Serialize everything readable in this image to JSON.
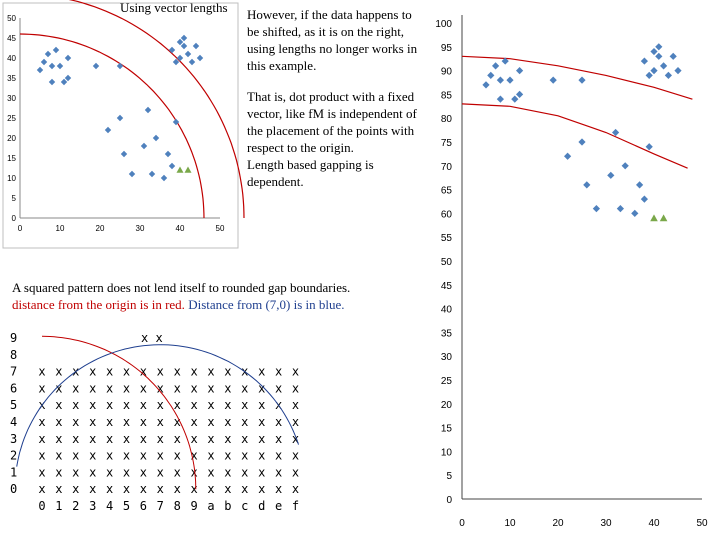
{
  "top_left_title": "Using vector lengths",
  "right_note": {
    "line1": "However, if the data happens to",
    "line2": "be shifted, as it is on the right,",
    "line3": "using lengths no longer works in",
    "line4": "this example.",
    "line5": "That is, dot product with a fixed",
    "line6": "vector, like fM is independent of",
    "line7": "the placement of the points with",
    "line8": "respect to the origin.",
    "line9": "Length based gapping is",
    "line10": "dependent."
  },
  "squared_note": {
    "line1": "A squared pattern does not lend itself to rounded gap boundaries.",
    "red_part": "distance from the origin is in red.",
    "blue_part": "Distance from (7,0) is in blue."
  },
  "colors": {
    "marker": "#4f81bd",
    "arc": "#c00000",
    "blue_arc": "#1f3f8f",
    "green": "#7aa84a"
  },
  "chart_data": [
    {
      "type": "scatter",
      "name": "left-chart",
      "title": "Using vector lengths",
      "xlim": [
        0,
        50
      ],
      "ylim": [
        0,
        50
      ],
      "x_ticks": [
        0,
        10,
        20,
        30,
        40,
        50
      ],
      "y_ticks": [
        0,
        5,
        10,
        15,
        20,
        25,
        30,
        35,
        40,
        45,
        50
      ],
      "points": [
        [
          5,
          37
        ],
        [
          6,
          39
        ],
        [
          7,
          41
        ],
        [
          8,
          38
        ],
        [
          8,
          34
        ],
        [
          9,
          42
        ],
        [
          10,
          38
        ],
        [
          11,
          34
        ],
        [
          12,
          40
        ],
        [
          12,
          35
        ],
        [
          19,
          38
        ],
        [
          22,
          22
        ],
        [
          25,
          38
        ],
        [
          25,
          25
        ],
        [
          26,
          16
        ],
        [
          28,
          11
        ],
        [
          31,
          18
        ],
        [
          32,
          27
        ],
        [
          33,
          11
        ],
        [
          34,
          20
        ],
        [
          36,
          10
        ],
        [
          37,
          16
        ],
        [
          38,
          42
        ],
        [
          38,
          13
        ],
        [
          39,
          39
        ],
        [
          39,
          24
        ],
        [
          40,
          44
        ],
        [
          40,
          40
        ],
        [
          41,
          45
        ],
        [
          41,
          43
        ],
        [
          42,
          41
        ],
        [
          43,
          39
        ],
        [
          44,
          43
        ],
        [
          45,
          40
        ]
      ],
      "green_points": [
        [
          40,
          12
        ],
        [
          42,
          12
        ]
      ],
      "arcs": [
        {
          "center": [
            0,
            0
          ],
          "radius": 46
        },
        {
          "center": [
            0,
            0
          ],
          "radius": 56
        }
      ]
    },
    {
      "type": "scatter",
      "name": "right-chart",
      "xlim": [
        0,
        50
      ],
      "ylim": [
        0,
        100
      ],
      "x_ticks": [
        0,
        10,
        20,
        30,
        40,
        50
      ],
      "y_ticks": [
        0,
        5,
        10,
        15,
        20,
        25,
        30,
        35,
        40,
        45,
        50,
        55,
        60,
        65,
        70,
        75,
        80,
        85,
        90,
        95,
        100
      ],
      "points": [
        [
          5,
          87
        ],
        [
          6,
          89
        ],
        [
          7,
          91
        ],
        [
          8,
          88
        ],
        [
          8,
          84
        ],
        [
          9,
          92
        ],
        [
          10,
          88
        ],
        [
          11,
          84
        ],
        [
          12,
          90
        ],
        [
          12,
          85
        ],
        [
          19,
          88
        ],
        [
          22,
          72
        ],
        [
          25,
          88
        ],
        [
          25,
          75
        ],
        [
          26,
          66
        ],
        [
          28,
          61
        ],
        [
          31,
          68
        ],
        [
          32,
          77
        ],
        [
          33,
          61
        ],
        [
          34,
          70
        ],
        [
          36,
          60
        ],
        [
          37,
          66
        ],
        [
          38,
          92
        ],
        [
          38,
          63
        ],
        [
          39,
          89
        ],
        [
          39,
          74
        ],
        [
          40,
          94
        ],
        [
          40,
          90
        ],
        [
          41,
          95
        ],
        [
          41,
          93
        ],
        [
          42,
          91
        ],
        [
          43,
          89
        ],
        [
          44,
          93
        ],
        [
          45,
          90
        ]
      ],
      "green_points": [
        [
          40,
          59
        ],
        [
          42,
          59
        ]
      ],
      "curves": [
        [
          [
            0,
            93
          ],
          [
            10,
            92.5
          ],
          [
            20,
            91
          ],
          [
            30,
            89
          ],
          [
            40,
            86.5
          ],
          [
            48,
            84
          ]
        ],
        [
          [
            0,
            83
          ],
          [
            10,
            82.5
          ],
          [
            20,
            80.5
          ],
          [
            30,
            77
          ],
          [
            40,
            72.5
          ],
          [
            47,
            69.5
          ]
        ]
      ]
    },
    {
      "type": "table",
      "name": "x-grid",
      "row_labels": [
        "9",
        "8",
        "7",
        "6",
        "5",
        "4",
        "3",
        "2",
        "1",
        "0"
      ],
      "col_labels": [
        "0",
        "1",
        "2",
        "3",
        "4",
        "5",
        "6",
        "7",
        "8",
        "9",
        "a",
        "b",
        "c",
        "d",
        "e",
        "f"
      ],
      "top_row_mark": "x x",
      "cell": "x"
    }
  ]
}
